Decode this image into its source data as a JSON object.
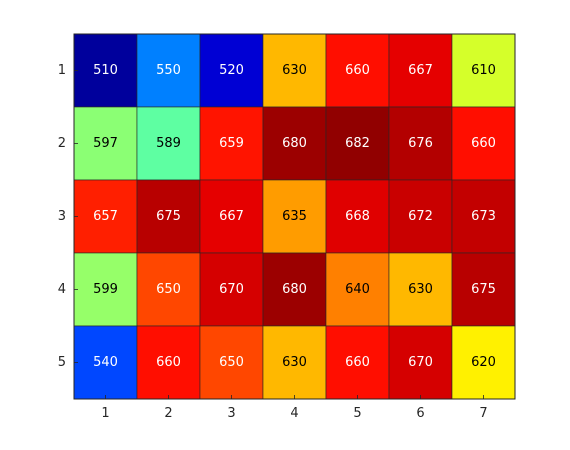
{
  "chart_data": {
    "type": "heatmap",
    "title": "",
    "xlabel": "",
    "ylabel": "",
    "x_ticks": [
      "1",
      "2",
      "3",
      "4",
      "5",
      "6",
      "7"
    ],
    "y_ticks": [
      "1",
      "2",
      "3",
      "4",
      "5"
    ],
    "values": [
      [
        510,
        550,
        520,
        630,
        660,
        667,
        610
      ],
      [
        597,
        589,
        659,
        680,
        682,
        676,
        660
      ],
      [
        657,
        675,
        667,
        635,
        668,
        672,
        673
      ],
      [
        599,
        650,
        670,
        680,
        640,
        630,
        675
      ],
      [
        540,
        660,
        650,
        630,
        660,
        670,
        620
      ]
    ],
    "colormap": "jet",
    "clim": [
      505,
      685
    ],
    "grid": false,
    "colorbar": false
  }
}
